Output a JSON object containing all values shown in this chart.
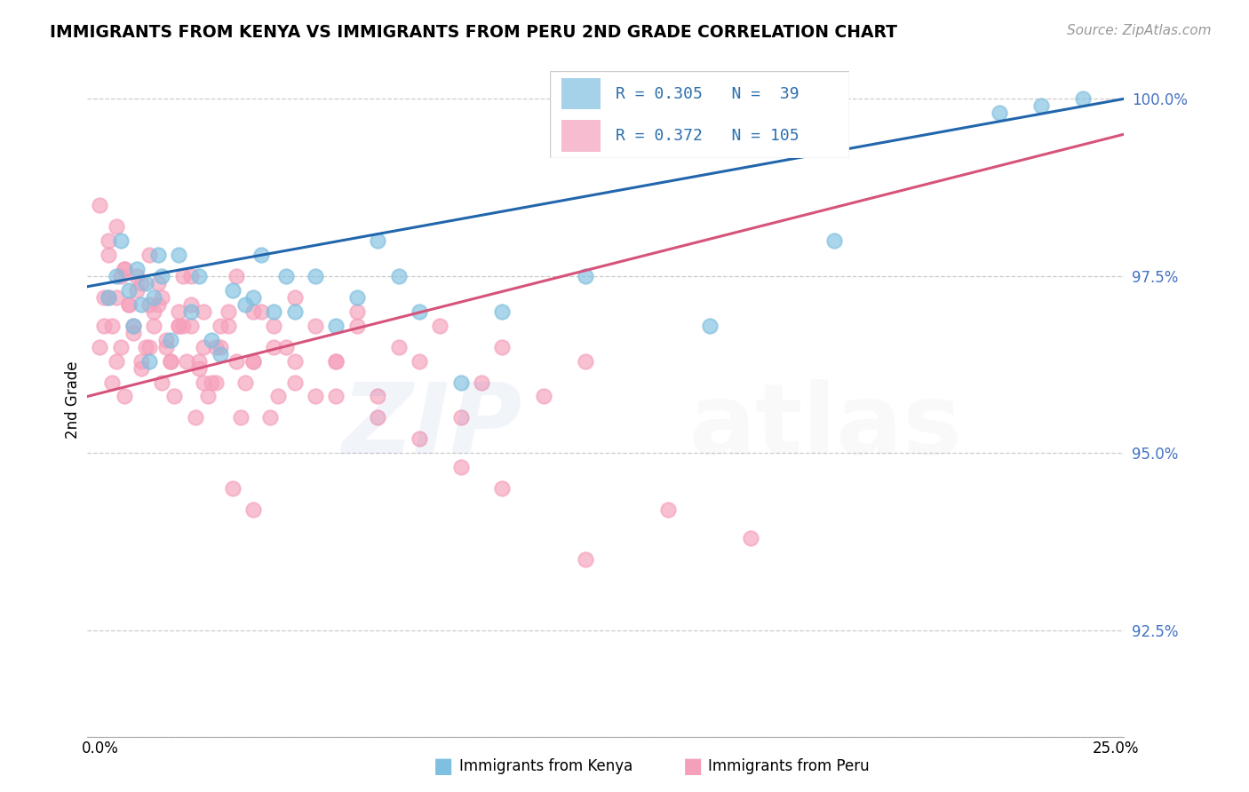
{
  "title": "IMMIGRANTS FROM KENYA VS IMMIGRANTS FROM PERU 2ND GRADE CORRELATION CHART",
  "source": "Source: ZipAtlas.com",
  "ylabel": "2nd Grade",
  "ytick_labels": [
    "100.0%",
    "97.5%",
    "95.0%",
    "92.5%"
  ],
  "ytick_values": [
    1.0,
    0.975,
    0.95,
    0.925
  ],
  "xmin": 0.0,
  "xmax": 0.25,
  "ymin": 0.91,
  "ymax": 1.005,
  "color_kenya": "#7fbfdf",
  "color_peru": "#f5a0bb",
  "color_kenya_line": "#2166ac",
  "color_peru_line": "#d6537a",
  "kenya_N": 39,
  "peru_N": 105,
  "kenya_R": 0.305,
  "peru_R": 0.372,
  "kenya_line_y0": 0.9735,
  "kenya_line_y1": 1.0,
  "peru_line_y0": 0.958,
  "peru_line_y1": 0.995,
  "kenya_scatter_x": [
    0.005,
    0.007,
    0.008,
    0.01,
    0.011,
    0.012,
    0.013,
    0.014,
    0.015,
    0.016,
    0.017,
    0.018,
    0.02,
    0.022,
    0.025,
    0.027,
    0.03,
    0.032,
    0.035,
    0.038,
    0.04,
    0.042,
    0.045,
    0.048,
    0.05,
    0.055,
    0.06,
    0.065,
    0.07,
    0.075,
    0.08,
    0.09,
    0.1,
    0.12,
    0.15,
    0.18,
    0.22,
    0.23,
    0.24
  ],
  "kenya_scatter_y": [
    0.972,
    0.975,
    0.98,
    0.973,
    0.968,
    0.976,
    0.971,
    0.974,
    0.963,
    0.972,
    0.978,
    0.975,
    0.966,
    0.978,
    0.97,
    0.975,
    0.966,
    0.964,
    0.973,
    0.971,
    0.972,
    0.978,
    0.97,
    0.975,
    0.97,
    0.975,
    0.968,
    0.972,
    0.98,
    0.975,
    0.97,
    0.96,
    0.97,
    0.975,
    0.968,
    0.98,
    0.998,
    0.999,
    1.0
  ],
  "peru_scatter_x": [
    0.003,
    0.004,
    0.005,
    0.006,
    0.007,
    0.008,
    0.009,
    0.01,
    0.011,
    0.012,
    0.013,
    0.014,
    0.015,
    0.016,
    0.017,
    0.018,
    0.019,
    0.02,
    0.021,
    0.022,
    0.023,
    0.024,
    0.025,
    0.026,
    0.027,
    0.028,
    0.029,
    0.03,
    0.032,
    0.034,
    0.036,
    0.038,
    0.04,
    0.042,
    0.044,
    0.046,
    0.048,
    0.05,
    0.055,
    0.06,
    0.065,
    0.07,
    0.075,
    0.08,
    0.085,
    0.09,
    0.095,
    0.1,
    0.11,
    0.12,
    0.005,
    0.007,
    0.009,
    0.011,
    0.013,
    0.015,
    0.017,
    0.02,
    0.022,
    0.025,
    0.028,
    0.031,
    0.034,
    0.037,
    0.04,
    0.045,
    0.05,
    0.055,
    0.06,
    0.065,
    0.003,
    0.005,
    0.007,
    0.009,
    0.012,
    0.015,
    0.018,
    0.022,
    0.025,
    0.028,
    0.032,
    0.036,
    0.04,
    0.045,
    0.05,
    0.06,
    0.07,
    0.08,
    0.09,
    0.1,
    0.004,
    0.006,
    0.008,
    0.01,
    0.013,
    0.016,
    0.019,
    0.023,
    0.027,
    0.031,
    0.035,
    0.04,
    0.12,
    0.14,
    0.16
  ],
  "peru_scatter_y": [
    0.965,
    0.968,
    0.972,
    0.96,
    0.963,
    0.975,
    0.958,
    0.971,
    0.967,
    0.973,
    0.962,
    0.965,
    0.971,
    0.968,
    0.974,
    0.96,
    0.966,
    0.963,
    0.958,
    0.97,
    0.975,
    0.963,
    0.968,
    0.955,
    0.962,
    0.97,
    0.958,
    0.96,
    0.965,
    0.968,
    0.975,
    0.96,
    0.963,
    0.97,
    0.955,
    0.958,
    0.965,
    0.96,
    0.968,
    0.963,
    0.97,
    0.958,
    0.965,
    0.963,
    0.968,
    0.955,
    0.96,
    0.965,
    0.958,
    0.963,
    0.978,
    0.972,
    0.976,
    0.968,
    0.974,
    0.965,
    0.971,
    0.963,
    0.968,
    0.975,
    0.96,
    0.965,
    0.97,
    0.955,
    0.963,
    0.968,
    0.972,
    0.958,
    0.963,
    0.968,
    0.985,
    0.98,
    0.982,
    0.976,
    0.975,
    0.978,
    0.972,
    0.968,
    0.971,
    0.965,
    0.968,
    0.963,
    0.97,
    0.965,
    0.963,
    0.958,
    0.955,
    0.952,
    0.948,
    0.945,
    0.972,
    0.968,
    0.965,
    0.971,
    0.963,
    0.97,
    0.965,
    0.968,
    0.963,
    0.96,
    0.945,
    0.942,
    0.935,
    0.942,
    0.938
  ]
}
